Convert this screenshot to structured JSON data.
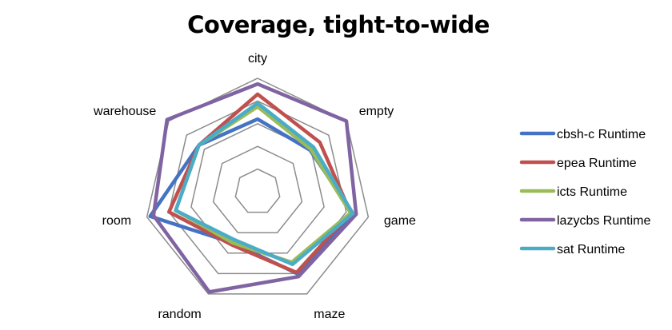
{
  "chart_data": {
    "type": "radar",
    "title": "Coverage, tight-to-wide",
    "categories": [
      "city",
      "empty",
      "game",
      "maze",
      "random",
      "room",
      "warehouse"
    ],
    "rmax": 1.0,
    "grid_levels": [
      0.2,
      0.4,
      0.6,
      0.8,
      1.0
    ],
    "legend_position": "right",
    "series": [
      {
        "name": "cbsh-c Runtime",
        "color": "#4472c4",
        "values": [
          0.64,
          0.59,
          0.86,
          0.8,
          0.5,
          0.97,
          0.66
        ]
      },
      {
        "name": "epea Runtime",
        "color": "#c0504d",
        "values": [
          0.86,
          0.7,
          0.84,
          0.79,
          0.52,
          0.8,
          0.66
        ]
      },
      {
        "name": "icts Runtime",
        "color": "#9bbb59",
        "values": [
          0.75,
          0.6,
          0.84,
          0.69,
          0.5,
          0.74,
          0.66
        ]
      },
      {
        "name": "lazycbs Runtime",
        "color": "#8064a2",
        "values": [
          0.95,
          1.0,
          0.89,
          0.83,
          0.98,
          0.94,
          1.02
        ]
      },
      {
        "name": "sat Runtime",
        "color": "#4bacc6",
        "values": [
          0.78,
          0.63,
          0.86,
          0.71,
          0.47,
          0.74,
          0.66
        ]
      }
    ]
  }
}
